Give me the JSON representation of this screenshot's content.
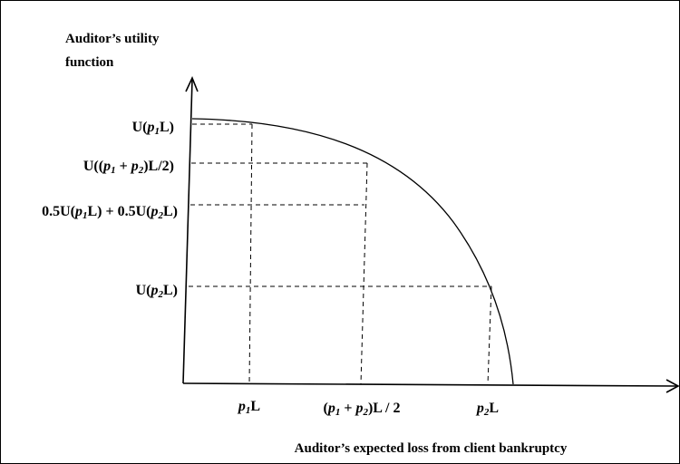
{
  "y_axis_title": {
    "line1": "Auditor’s utility",
    "line2": "function"
  },
  "x_axis_title": "Auditor’s expected loss from client bankruptcy",
  "y_labels": [
    {
      "key": "u_p1L",
      "pre": "U(",
      "it1": "p",
      "sub1": "1",
      "mid": "L)",
      "it2": "",
      "sub2": "",
      "post": ""
    },
    {
      "key": "u_avg",
      "pre": "U((",
      "it1": "p",
      "sub1": "1",
      "mid": " + ",
      "it2": "p",
      "sub2": "2",
      "post": ")L/2)"
    },
    {
      "key": "eu",
      "pre": "0.5U(",
      "it1": "p",
      "sub1": "1",
      "mid": "L) + 0.5U(",
      "it2": "p",
      "sub2": "2",
      "post": "L)"
    },
    {
      "key": "u_p2L",
      "pre": "U(",
      "it1": "p",
      "sub1": "2",
      "mid": "L)",
      "it2": "",
      "sub2": "",
      "post": ""
    }
  ],
  "x_labels": [
    {
      "key": "p1L",
      "pre": "",
      "it1": "p",
      "sub1": "1",
      "mid": "L",
      "it2": "",
      "sub2": "",
      "post": ""
    },
    {
      "key": "avg",
      "pre": "(",
      "it1": "p",
      "sub1": "1",
      "mid": " + ",
      "it2": "p",
      "sub2": "2",
      "post": ")L / 2"
    },
    {
      "key": "p2L",
      "pre": "",
      "it1": "p",
      "sub1": "2",
      "mid": "L",
      "it2": "",
      "sub2": "",
      "post": ""
    }
  ]
}
